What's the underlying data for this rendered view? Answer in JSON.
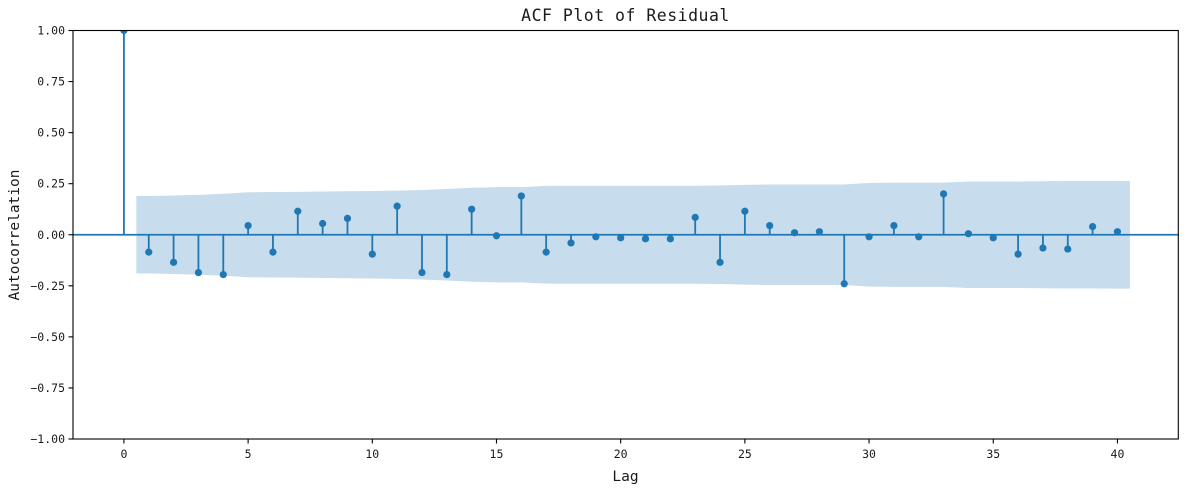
{
  "chart_data": {
    "type": "stem",
    "title": "ACF Plot of Residual",
    "xlabel": "Lag",
    "ylabel": "Autocorrelation",
    "xlim": [
      -2.05,
      42.45
    ],
    "ylim": [
      -1.0,
      1.0
    ],
    "grid": false,
    "legend": "none",
    "x_ticks": [
      0,
      5,
      10,
      15,
      20,
      25,
      30,
      35,
      40
    ],
    "x_tick_labels": [
      "0",
      "5",
      "10",
      "15",
      "20",
      "25",
      "30",
      "35",
      "40"
    ],
    "y_ticks": [
      1.0,
      0.75,
      0.5,
      0.25,
      0.0,
      -0.25,
      -0.5,
      -0.75,
      -1.0
    ],
    "y_tick_labels": [
      "1.00",
      "0.75",
      "0.50",
      "0.25",
      "0.00",
      "−0.25",
      "−0.50",
      "−0.75",
      "−1.00"
    ],
    "lags": [
      0,
      1,
      2,
      3,
      4,
      5,
      6,
      7,
      8,
      9,
      10,
      11,
      12,
      13,
      14,
      15,
      16,
      17,
      18,
      19,
      20,
      21,
      22,
      23,
      24,
      25,
      26,
      27,
      28,
      29,
      30,
      31,
      32,
      33,
      34,
      35,
      36,
      37,
      38,
      39,
      40
    ],
    "acf_values": [
      1.0,
      -0.085,
      -0.135,
      -0.185,
      -0.195,
      0.045,
      -0.085,
      0.115,
      0.055,
      0.08,
      -0.095,
      0.14,
      -0.185,
      -0.195,
      0.125,
      -0.005,
      0.19,
      -0.085,
      -0.04,
      -0.01,
      -0.015,
      -0.02,
      -0.02,
      0.085,
      -0.135,
      0.115,
      0.045,
      0.01,
      0.015,
      -0.24,
      -0.01,
      0.045,
      -0.01,
      0.2,
      0.005,
      -0.015,
      -0.095,
      -0.065,
      -0.07,
      0.04,
      0.015
    ],
    "confidence_band": {
      "lags": [
        0.5,
        1,
        2,
        3,
        4,
        5,
        6,
        7,
        8,
        9,
        10,
        11,
        12,
        13,
        14,
        15,
        16,
        17,
        18,
        19,
        20,
        21,
        22,
        23,
        24,
        25,
        26,
        27,
        28,
        29,
        30,
        31,
        32,
        33,
        34,
        35,
        36,
        37,
        38,
        39,
        40,
        40.5
      ],
      "halfwidths": [
        0.19,
        0.19,
        0.192,
        0.195,
        0.201,
        0.208,
        0.209,
        0.21,
        0.212,
        0.213,
        0.214,
        0.216,
        0.219,
        0.224,
        0.23,
        0.233,
        0.233,
        0.239,
        0.24,
        0.24,
        0.24,
        0.24,
        0.24,
        0.24,
        0.241,
        0.244,
        0.246,
        0.246,
        0.246,
        0.246,
        0.254,
        0.255,
        0.255,
        0.255,
        0.261,
        0.261,
        0.261,
        0.262,
        0.263,
        0.263,
        0.264,
        0.264
      ]
    },
    "colors": {
      "stem": "#1f77b4",
      "marker": "#1f77b4",
      "zero_line": "#1f77b4",
      "band_fill": "#c7dcec",
      "axis": "#000000"
    },
    "style": {
      "marker_radius": 3.6,
      "stem_width": 1.8,
      "zero_line_width": 1.8,
      "spine_width": 1.1,
      "tick_length": 4.5
    }
  }
}
